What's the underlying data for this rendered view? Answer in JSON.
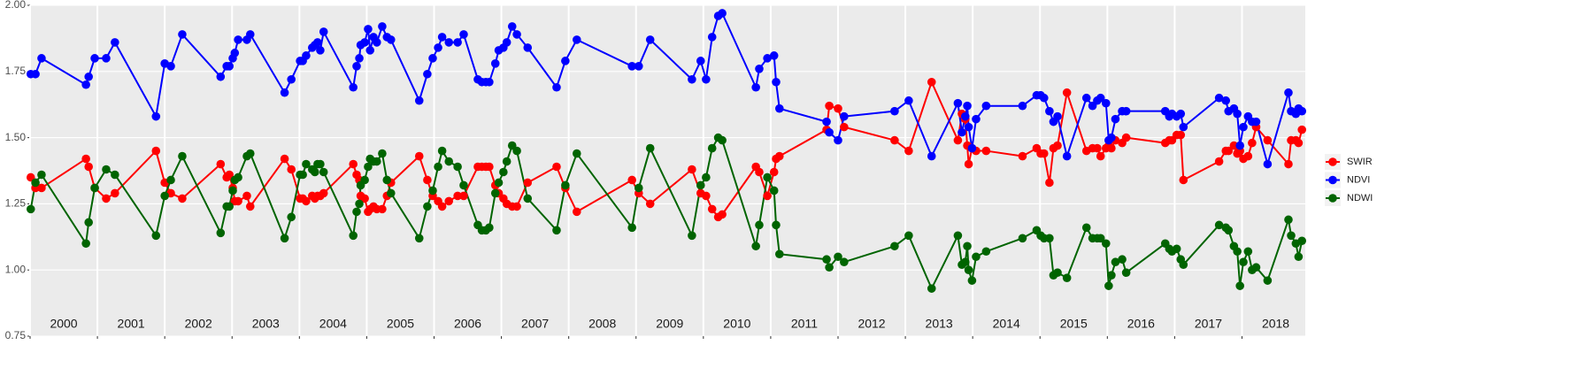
{
  "chart_data": {
    "type": "line",
    "x": [
      2000.01,
      2000.08,
      2000.17,
      2000.83,
      2000.87,
      2000.96,
      2001.13,
      2001.26,
      2001.87,
      2002.0,
      2002.09,
      2002.26,
      2002.83,
      2002.92,
      2002.96,
      2003.01,
      2003.04,
      2003.09,
      2003.22,
      2003.27,
      2003.78,
      2003.88,
      2004.01,
      2004.05,
      2004.1,
      2004.19,
      2004.23,
      2004.27,
      2004.31,
      2004.36,
      2004.8,
      2004.85,
      2004.89,
      2004.91,
      2004.97,
      2005.02,
      2005.05,
      2005.1,
      2005.15,
      2005.23,
      2005.3,
      2005.36,
      2005.78,
      2005.9,
      2005.98,
      2006.06,
      2006.12,
      2006.22,
      2006.35,
      2006.44,
      2006.65,
      2006.71,
      2006.77,
      2006.82,
      2006.91,
      2006.96,
      2007.03,
      2007.08,
      2007.16,
      2007.23,
      2007.39,
      2007.82,
      2007.95,
      2008.12,
      2008.94,
      2009.04,
      2009.21,
      2009.83,
      2009.96,
      2010.04,
      2010.13,
      2010.22,
      2010.28,
      2010.78,
      2010.83,
      2010.95,
      2011.05,
      2011.08,
      2011.13,
      2011.83,
      2011.87,
      2012.0,
      2012.09,
      2012.84,
      2013.05,
      2013.39,
      2013.78,
      2013.84,
      2013.89,
      2013.92,
      2013.94,
      2013.99,
      2014.05,
      2014.2,
      2014.74,
      2014.95,
      2015.01,
      2015.06,
      2015.14,
      2015.2,
      2015.26,
      2015.4,
      2015.69,
      2015.78,
      2015.85,
      2015.9,
      2015.98,
      2016.02,
      2016.06,
      2016.12,
      2016.22,
      2016.28,
      2016.86,
      2016.92,
      2016.96,
      2017.03,
      2017.09,
      2017.13,
      2017.66,
      2017.76,
      2017.8,
      2017.88,
      2017.93,
      2017.97,
      2018.02,
      2018.09,
      2018.15,
      2018.21,
      2018.38,
      2018.69,
      2018.73,
      2018.8,
      2018.84,
      2018.89
    ],
    "series": [
      {
        "name": "SWIR",
        "color": "#ff0000",
        "values": [
          1.35,
          1.31,
          1.31,
          1.42,
          1.39,
          1.31,
          1.27,
          1.29,
          1.45,
          1.33,
          1.29,
          1.27,
          1.4,
          1.35,
          1.36,
          1.31,
          1.26,
          1.26,
          1.28,
          1.24,
          1.42,
          1.38,
          1.27,
          1.27,
          1.26,
          1.28,
          1.27,
          1.28,
          1.28,
          1.29,
          1.4,
          1.36,
          1.34,
          1.28,
          1.27,
          1.22,
          1.23,
          1.24,
          1.23,
          1.23,
          1.28,
          1.33,
          1.43,
          1.34,
          1.28,
          1.26,
          1.24,
          1.26,
          1.28,
          1.28,
          1.39,
          1.39,
          1.39,
          1.39,
          1.32,
          1.29,
          1.27,
          1.25,
          1.24,
          1.24,
          1.33,
          1.39,
          1.31,
          1.22,
          1.34,
          1.29,
          1.25,
          1.38,
          1.29,
          1.28,
          1.23,
          1.2,
          1.21,
          1.39,
          1.37,
          1.28,
          1.37,
          1.42,
          1.43,
          1.53,
          1.62,
          1.61,
          1.54,
          1.49,
          1.45,
          1.71,
          1.49,
          1.59,
          1.57,
          1.47,
          1.4,
          1.46,
          1.45,
          1.45,
          1.43,
          1.46,
          1.44,
          1.44,
          1.33,
          1.46,
          1.47,
          1.67,
          1.45,
          1.46,
          1.46,
          1.43,
          1.46,
          1.47,
          1.46,
          1.49,
          1.48,
          1.5,
          1.48,
          1.49,
          1.49,
          1.51,
          1.51,
          1.34,
          1.41,
          1.45,
          1.45,
          1.47,
          1.44,
          1.45,
          1.42,
          1.43,
          1.48,
          1.54,
          1.49,
          1.4,
          1.49,
          1.49,
          1.48,
          1.53
        ]
      },
      {
        "name": "NDVI",
        "color": "#0000ff",
        "values": [
          1.74,
          1.74,
          1.8,
          1.7,
          1.73,
          1.8,
          1.8,
          1.86,
          1.58,
          1.78,
          1.77,
          1.89,
          1.73,
          1.77,
          1.77,
          1.8,
          1.82,
          1.87,
          1.87,
          1.89,
          1.67,
          1.72,
          1.79,
          1.79,
          1.81,
          1.84,
          1.85,
          1.86,
          1.83,
          1.9,
          1.69,
          1.77,
          1.8,
          1.85,
          1.86,
          1.91,
          1.83,
          1.88,
          1.86,
          1.92,
          1.88,
          1.87,
          1.64,
          1.74,
          1.8,
          1.84,
          1.88,
          1.86,
          1.86,
          1.89,
          1.72,
          1.71,
          1.71,
          1.71,
          1.78,
          1.83,
          1.84,
          1.86,
          1.92,
          1.89,
          1.84,
          1.69,
          1.79,
          1.87,
          1.77,
          1.77,
          1.87,
          1.72,
          1.79,
          1.72,
          1.88,
          1.96,
          1.97,
          1.69,
          1.76,
          1.8,
          1.81,
          1.71,
          1.61,
          1.56,
          1.52,
          1.49,
          1.58,
          1.6,
          1.64,
          1.43,
          1.63,
          1.52,
          1.58,
          1.62,
          1.54,
          1.46,
          1.57,
          1.62,
          1.62,
          1.66,
          1.66,
          1.65,
          1.6,
          1.56,
          1.58,
          1.43,
          1.65,
          1.62,
          1.64,
          1.65,
          1.63,
          1.49,
          1.5,
          1.57,
          1.6,
          1.6,
          1.6,
          1.58,
          1.59,
          1.58,
          1.59,
          1.54,
          1.65,
          1.64,
          1.6,
          1.61,
          1.59,
          1.47,
          1.54,
          1.58,
          1.56,
          1.56,
          1.4,
          1.67,
          1.6,
          1.59,
          1.61,
          1.6
        ]
      },
      {
        "name": "NDWI",
        "color": "#006400",
        "values": [
          1.23,
          1.33,
          1.36,
          1.1,
          1.18,
          1.31,
          1.38,
          1.36,
          1.13,
          1.28,
          1.34,
          1.43,
          1.14,
          1.24,
          1.24,
          1.3,
          1.34,
          1.35,
          1.43,
          1.44,
          1.12,
          1.2,
          1.36,
          1.36,
          1.4,
          1.38,
          1.37,
          1.4,
          1.4,
          1.37,
          1.13,
          1.22,
          1.25,
          1.32,
          1.34,
          1.39,
          1.42,
          1.41,
          1.41,
          1.44,
          1.34,
          1.29,
          1.12,
          1.24,
          1.3,
          1.39,
          1.45,
          1.41,
          1.39,
          1.32,
          1.17,
          1.15,
          1.15,
          1.16,
          1.29,
          1.33,
          1.37,
          1.41,
          1.47,
          1.45,
          1.27,
          1.15,
          1.32,
          1.44,
          1.16,
          1.31,
          1.46,
          1.13,
          1.32,
          1.35,
          1.46,
          1.5,
          1.49,
          1.09,
          1.17,
          1.35,
          1.3,
          1.17,
          1.06,
          1.04,
          1.01,
          1.05,
          1.03,
          1.09,
          1.13,
          0.93,
          1.13,
          1.02,
          1.03,
          1.09,
          1.0,
          0.96,
          1.05,
          1.07,
          1.12,
          1.15,
          1.13,
          1.12,
          1.12,
          0.98,
          0.99,
          0.97,
          1.16,
          1.12,
          1.12,
          1.12,
          1.1,
          0.94,
          0.98,
          1.03,
          1.04,
          0.99,
          1.1,
          1.08,
          1.07,
          1.08,
          1.04,
          1.02,
          1.17,
          1.16,
          1.15,
          1.09,
          1.07,
          0.94,
          1.03,
          1.07,
          1.0,
          1.01,
          0.96,
          1.19,
          1.13,
          1.1,
          1.05,
          1.11
        ]
      }
    ],
    "xlim": [
      2000,
      2018.94
    ],
    "xticks": [
      {
        "value": 2000,
        "label": "2000"
      },
      {
        "value": 2001,
        "label": "2001"
      },
      {
        "value": 2002,
        "label": "2002"
      },
      {
        "value": 2003,
        "label": "2003"
      },
      {
        "value": 2004,
        "label": "2004"
      },
      {
        "value": 2005,
        "label": "2005"
      },
      {
        "value": 2006,
        "label": "2006"
      },
      {
        "value": 2007,
        "label": "2007"
      },
      {
        "value": 2008,
        "label": "2008"
      },
      {
        "value": 2009,
        "label": "2009"
      },
      {
        "value": 2010,
        "label": "2010"
      },
      {
        "value": 2011,
        "label": "2011"
      },
      {
        "value": 2012,
        "label": "2012"
      },
      {
        "value": 2013,
        "label": "2013"
      },
      {
        "value": 2014,
        "label": "2014"
      },
      {
        "value": 2015,
        "label": "2015"
      },
      {
        "value": 2016,
        "label": "2016"
      },
      {
        "value": 2017,
        "label": "2017"
      },
      {
        "value": 2018,
        "label": "2018"
      }
    ],
    "ylim": [
      0.75,
      2.0
    ],
    "yticks": [
      {
        "value": 0.75,
        "label": "0.75"
      },
      {
        "value": 1.0,
        "label": "1.00"
      },
      {
        "value": 1.25,
        "label": "1.25"
      },
      {
        "value": 1.5,
        "label": "1.50"
      },
      {
        "value": 1.75,
        "label": "1.75"
      },
      {
        "value": 2.0,
        "label": "2.00"
      }
    ],
    "grid": true,
    "legend": "right"
  }
}
